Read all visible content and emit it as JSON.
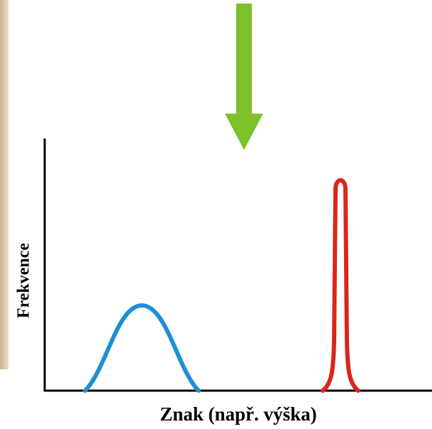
{
  "axes": {
    "y_label": "Frekvence",
    "x_label": "Znak (např. výška)"
  }
}
